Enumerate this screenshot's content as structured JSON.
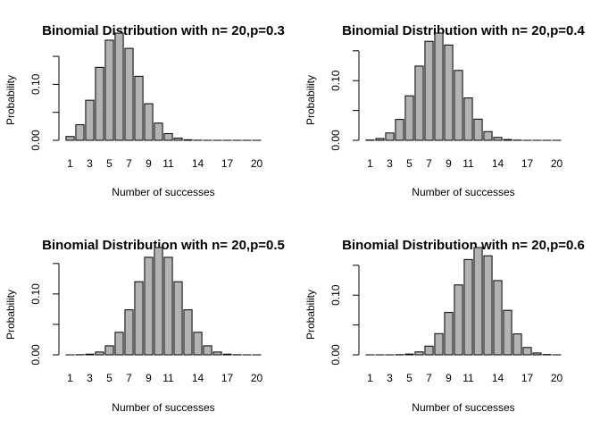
{
  "chart_data": [
    {
      "type": "bar",
      "title": "Binomial Distribution with n= 20,p=0.3",
      "xlabel": "Number of successes",
      "ylabel": "Probability",
      "categories": [
        "1",
        "2",
        "3",
        "4",
        "5",
        "6",
        "7",
        "8",
        "9",
        "10",
        "11",
        "12",
        "13",
        "14",
        "15",
        "16",
        "17",
        "18",
        "19",
        "20"
      ],
      "x_tick_labels": [
        "1",
        "3",
        "5",
        "7",
        "9",
        "11",
        "14",
        "17",
        "20"
      ],
      "values": [
        0.0068,
        0.0278,
        0.0716,
        0.1304,
        0.1789,
        0.1916,
        0.1643,
        0.1144,
        0.0654,
        0.0308,
        0.012,
        0.0039,
        0.001,
        0.0002,
        0.0,
        0.0,
        0.0,
        0.0,
        0.0,
        0.0
      ],
      "ylim": [
        0,
        0.1916
      ],
      "y_ticks": [
        0.0,
        0.05,
        0.1,
        0.15
      ],
      "y_tick_labels": [
        "0.00",
        "",
        "0.10",
        ""
      ],
      "bar_color": "#b3b3b3"
    },
    {
      "type": "bar",
      "title": "Binomial Distribution with n= 20,p=0.4",
      "xlabel": "Number of successes",
      "ylabel": "Probability",
      "categories": [
        "1",
        "2",
        "3",
        "4",
        "5",
        "6",
        "7",
        "8",
        "9",
        "10",
        "11",
        "12",
        "13",
        "14",
        "15",
        "16",
        "17",
        "18",
        "19",
        "20"
      ],
      "x_tick_labels": [
        "1",
        "3",
        "5",
        "7",
        "9",
        "11",
        "14",
        "17",
        "20"
      ],
      "values": [
        0.0005,
        0.0031,
        0.0123,
        0.035,
        0.0746,
        0.1244,
        0.1659,
        0.1797,
        0.1597,
        0.1171,
        0.071,
        0.0355,
        0.0146,
        0.0049,
        0.0013,
        0.0003,
        0.0,
        0.0,
        0.0,
        0.0
      ],
      "ylim": [
        0,
        0.1797
      ],
      "y_ticks": [
        0.0,
        0.05,
        0.1,
        0.15
      ],
      "y_tick_labels": [
        "0.00",
        "",
        "0.10",
        ""
      ],
      "bar_color": "#b3b3b3"
    },
    {
      "type": "bar",
      "title": "Binomial Distribution with n= 20,p=0.5",
      "xlabel": "Number of successes",
      "ylabel": "Probability",
      "categories": [
        "1",
        "2",
        "3",
        "4",
        "5",
        "6",
        "7",
        "8",
        "9",
        "10",
        "11",
        "12",
        "13",
        "14",
        "15",
        "16",
        "17",
        "18",
        "19",
        "20"
      ],
      "x_tick_labels": [
        "1",
        "3",
        "5",
        "7",
        "9",
        "11",
        "14",
        "17",
        "20"
      ],
      "values": [
        0.0,
        0.0002,
        0.0011,
        0.0046,
        0.0148,
        0.037,
        0.0739,
        0.1201,
        0.1602,
        0.1762,
        0.1602,
        0.1201,
        0.0739,
        0.037,
        0.0148,
        0.0046,
        0.0011,
        0.0002,
        0.0,
        0.0
      ],
      "ylim": [
        0,
        0.1762
      ],
      "y_ticks": [
        0.0,
        0.05,
        0.1,
        0.15
      ],
      "y_tick_labels": [
        "0.00",
        "",
        "0.10",
        ""
      ],
      "bar_color": "#b3b3b3"
    },
    {
      "type": "bar",
      "title": "Binomial Distribution with n= 20,p=0.6",
      "xlabel": "Number of successes",
      "ylabel": "Probability",
      "categories": [
        "1",
        "2",
        "3",
        "4",
        "5",
        "6",
        "7",
        "8",
        "9",
        "10",
        "11",
        "12",
        "13",
        "14",
        "15",
        "16",
        "17",
        "18",
        "19",
        "20"
      ],
      "x_tick_labels": [
        "1",
        "3",
        "5",
        "7",
        "9",
        "11",
        "14",
        "17",
        "20"
      ],
      "values": [
        0.0,
        0.0,
        0.0,
        0.0003,
        0.0013,
        0.0049,
        0.0146,
        0.0355,
        0.071,
        0.1171,
        0.1597,
        0.1797,
        0.1659,
        0.1244,
        0.0746,
        0.035,
        0.0123,
        0.0031,
        0.0005,
        0.0
      ],
      "ylim": [
        0,
        0.1797
      ],
      "y_ticks": [
        0.0,
        0.05,
        0.1,
        0.15
      ],
      "y_tick_labels": [
        "0.00",
        "",
        "0.10",
        ""
      ],
      "bar_color": "#b3b3b3"
    }
  ]
}
